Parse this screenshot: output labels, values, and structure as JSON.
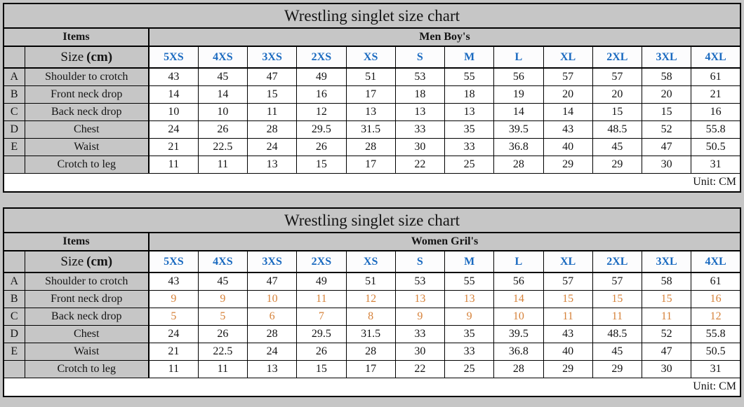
{
  "page": {
    "background_gray": "#c6c6c6"
  },
  "colors": {
    "header_gray": "#c6c6c6",
    "size_header_blue": "#1a6ac0",
    "highlight_orange": "#d6823a",
    "border_black": "#000000",
    "cell_white": "#ffffff"
  },
  "chart_data": [
    {
      "type": "table",
      "title": "Wrestling singlet size chart",
      "corner_header": "Items",
      "group_header": "Men Boy's",
      "size_label": "Size",
      "size_label_unit": "(cm)",
      "columns": [
        "5XS",
        "4XS",
        "3XS",
        "2XS",
        "XS",
        "S",
        "M",
        "L",
        "XL",
        "2XL",
        "3XL",
        "4XL"
      ],
      "rows": [
        {
          "letter": "A",
          "item": "Shoulder to crotch",
          "highlight": false,
          "values": [
            43,
            45,
            47,
            49,
            51,
            53,
            55,
            56,
            57,
            57,
            58,
            61
          ]
        },
        {
          "letter": "B",
          "item": "Front neck drop",
          "highlight": false,
          "values": [
            14,
            14,
            15,
            16,
            17,
            18,
            18,
            19,
            20,
            20,
            20,
            21
          ]
        },
        {
          "letter": "C",
          "item": "Back neck drop",
          "highlight": false,
          "values": [
            10,
            10,
            11,
            12,
            13,
            13,
            13,
            14,
            14,
            15,
            15,
            16
          ]
        },
        {
          "letter": "D",
          "item": "Chest",
          "highlight": false,
          "values": [
            24,
            26,
            28,
            29.5,
            31.5,
            33,
            35,
            39.5,
            43,
            48.5,
            52,
            55.8
          ]
        },
        {
          "letter": "E",
          "item": "Waist",
          "highlight": false,
          "values": [
            21,
            22.5,
            24,
            26,
            28,
            30,
            33,
            36.8,
            40,
            45,
            47,
            50.5
          ]
        },
        {
          "letter": "",
          "item": "Crotch to leg",
          "highlight": false,
          "values": [
            11,
            11,
            13,
            15,
            17,
            22,
            25,
            28,
            29,
            29,
            30,
            31
          ]
        }
      ],
      "unit": "Unit: CM"
    },
    {
      "type": "table",
      "title": "Wrestling singlet size chart",
      "corner_header": "Items",
      "group_header": "Women Gril's",
      "size_label": "Size",
      "size_label_unit": "(cm)",
      "columns": [
        "5XS",
        "4XS",
        "3XS",
        "2XS",
        "XS",
        "S",
        "M",
        "L",
        "XL",
        "2XL",
        "3XL",
        "4XL"
      ],
      "rows": [
        {
          "letter": "A",
          "item": "Shoulder to crotch",
          "highlight": false,
          "values": [
            43,
            45,
            47,
            49,
            51,
            53,
            55,
            56,
            57,
            57,
            58,
            61
          ]
        },
        {
          "letter": "B",
          "item": "Front neck drop",
          "highlight": true,
          "values": [
            9,
            9,
            10,
            11,
            12,
            13,
            13,
            14,
            15,
            15,
            15,
            16
          ]
        },
        {
          "letter": "C",
          "item": "Back neck drop",
          "highlight": true,
          "values": [
            5,
            5,
            6,
            7,
            8,
            9,
            9,
            10,
            11,
            11,
            11,
            12
          ]
        },
        {
          "letter": "D",
          "item": "Chest",
          "highlight": false,
          "values": [
            24,
            26,
            28,
            29.5,
            31.5,
            33,
            35,
            39.5,
            43,
            48.5,
            52,
            55.8
          ]
        },
        {
          "letter": "E",
          "item": "Waist",
          "highlight": false,
          "values": [
            21,
            22.5,
            24,
            26,
            28,
            30,
            33,
            36.8,
            40,
            45,
            47,
            50.5
          ]
        },
        {
          "letter": "",
          "item": "Crotch to leg",
          "highlight": false,
          "values": [
            11,
            11,
            13,
            15,
            17,
            22,
            25,
            28,
            29,
            29,
            30,
            31
          ]
        }
      ],
      "unit": "Unit: CM"
    }
  ]
}
